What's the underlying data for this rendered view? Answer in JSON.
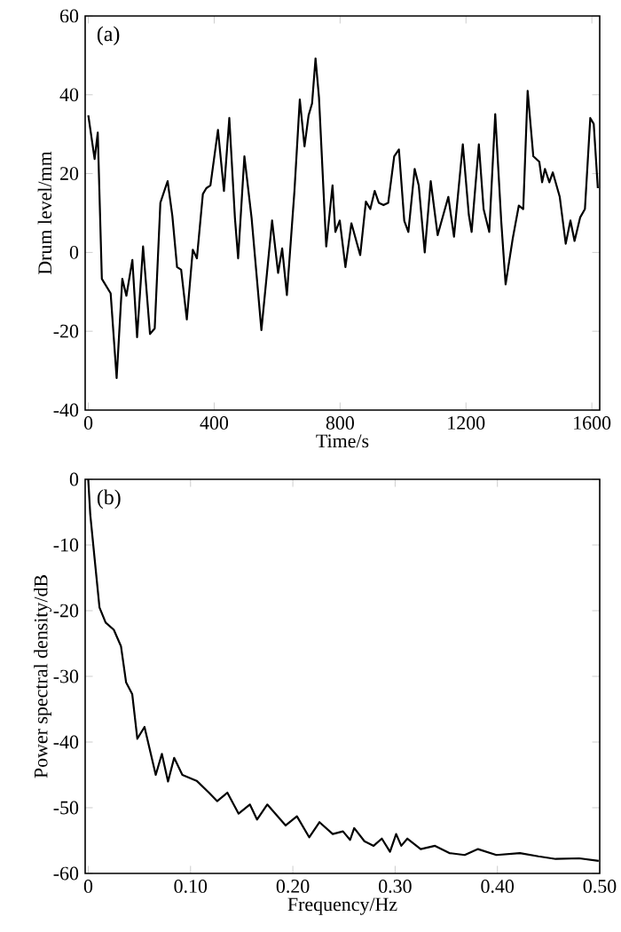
{
  "chart_data": [
    {
      "type": "line",
      "xlabel": "Time/s",
      "ylabel": "Drum level/mm",
      "annotations": [
        "(a)"
      ],
      "x": [
        0,
        20,
        30,
        43,
        71,
        90,
        108,
        121,
        140,
        155,
        174,
        196,
        211,
        229,
        252,
        267,
        282,
        295,
        313,
        332,
        345,
        364,
        375,
        388,
        412,
        431,
        448,
        466,
        476,
        496,
        519,
        550,
        584,
        603,
        616,
        631,
        655,
        672,
        687,
        700,
        711,
        722,
        733,
        752,
        756,
        776,
        785,
        799,
        817,
        836,
        864,
        882,
        896,
        910,
        923,
        938,
        953,
        972,
        987,
        1004,
        1017,
        1037,
        1050,
        1069,
        1088,
        1110,
        1144,
        1162,
        1190,
        1209,
        1218,
        1241,
        1256,
        1274,
        1293,
        1312,
        1326,
        1349,
        1368,
        1382,
        1396,
        1414,
        1433,
        1442,
        1451,
        1465,
        1476,
        1498,
        1517,
        1532,
        1545,
        1563,
        1578,
        1595,
        1606,
        1619
      ],
      "series": [
        {
          "color": "#000000",
          "values": [
            34.8,
            23.7,
            30.4,
            -6.7,
            -10.4,
            -31.9,
            -6.7,
            -11,
            -1.9,
            -21.5,
            1.5,
            -20.7,
            -19.3,
            12.6,
            18.1,
            9.3,
            -3.7,
            -4.4,
            -17,
            0.7,
            -1.5,
            14.8,
            16.3,
            17,
            31.1,
            15.6,
            34.1,
            8.6,
            -1.5,
            24.4,
            8.6,
            -19.7,
            8.1,
            -5.2,
            1,
            -10.8,
            15.6,
            38.8,
            26.9,
            34.8,
            37.8,
            49.2,
            39.3,
            8,
            1.5,
            17,
            5.2,
            8.1,
            -3.7,
            7.4,
            -0.7,
            12.9,
            11,
            15.6,
            12.6,
            12,
            12.6,
            24.4,
            26.1,
            8,
            5.2,
            21.2,
            17,
            0,
            18.1,
            4.4,
            14.1,
            4,
            27.4,
            9.6,
            5.2,
            27.4,
            11,
            5.2,
            35.1,
            8,
            -8.1,
            3.7,
            11.9,
            11,
            41,
            24.4,
            23,
            17.8,
            21.2,
            17.8,
            20.3,
            14.1,
            2.2,
            8.1,
            2.9,
            8.9,
            11,
            34.1,
            32.6,
            16.3
          ]
        }
      ],
      "xlim": [
        -10,
        1625
      ],
      "ylim": [
        -40,
        60
      ],
      "xticks": [
        0,
        400,
        800,
        1200,
        1600
      ],
      "yticks": [
        -40,
        -20,
        0,
        20,
        40,
        60
      ],
      "grid": false,
      "line_style": "solid",
      "marker": "none"
    },
    {
      "type": "line",
      "xlabel": "Frequency/Hz",
      "ylabel": "Power spectral density/dB",
      "annotations": [
        "(b)"
      ],
      "x": [
        0,
        0.002,
        0.006,
        0.011,
        0.017,
        0.025,
        0.032,
        0.037,
        0.043,
        0.048,
        0.055,
        0.066,
        0.072,
        0.078,
        0.084,
        0.092,
        0.106,
        0.118,
        0.126,
        0.136,
        0.147,
        0.158,
        0.165,
        0.175,
        0.193,
        0.204,
        0.216,
        0.226,
        0.239,
        0.249,
        0.256,
        0.26,
        0.27,
        0.279,
        0.287,
        0.295,
        0.301,
        0.306,
        0.312,
        0.325,
        0.339,
        0.353,
        0.368,
        0.381,
        0.399,
        0.422,
        0.44,
        0.457,
        0.48,
        0.499
      ],
      "series": [
        {
          "color": "#000000",
          "values": [
            0,
            -5.4,
            -11.7,
            -19.5,
            -21.8,
            -22.9,
            -25.4,
            -30.9,
            -32.7,
            -39.5,
            -37.7,
            -45,
            -41.8,
            -46,
            -42.4,
            -45,
            -45.9,
            -47.7,
            -49,
            -47.7,
            -50.9,
            -49.5,
            -51.8,
            -49.5,
            -52.7,
            -51.3,
            -54.5,
            -52.2,
            -54,
            -53.6,
            -54.9,
            -53.1,
            -55.1,
            -55.8,
            -54.7,
            -56.7,
            -54,
            -55.8,
            -54.7,
            -56.3,
            -55.8,
            -56.9,
            -57.2,
            -56.3,
            -57.2,
            -56.9,
            -57.4,
            -57.8,
            -57.7,
            -58.1
          ]
        }
      ],
      "xlim": [
        -0.003,
        0.5
      ],
      "ylim": [
        -60,
        0
      ],
      "xticks": [
        0,
        {
          "value": 0.1,
          "label": "0.10"
        },
        {
          "value": 0.2,
          "label": "0.20"
        },
        {
          "value": 0.3,
          "label": "0.30"
        },
        {
          "value": 0.4,
          "label": "0.40"
        },
        {
          "value": 0.5,
          "label": "0.50"
        }
      ],
      "yticks": [
        -60,
        -50,
        -40,
        -30,
        -20,
        -10,
        0
      ],
      "grid": false,
      "line_style": "solid",
      "marker": "none"
    }
  ]
}
